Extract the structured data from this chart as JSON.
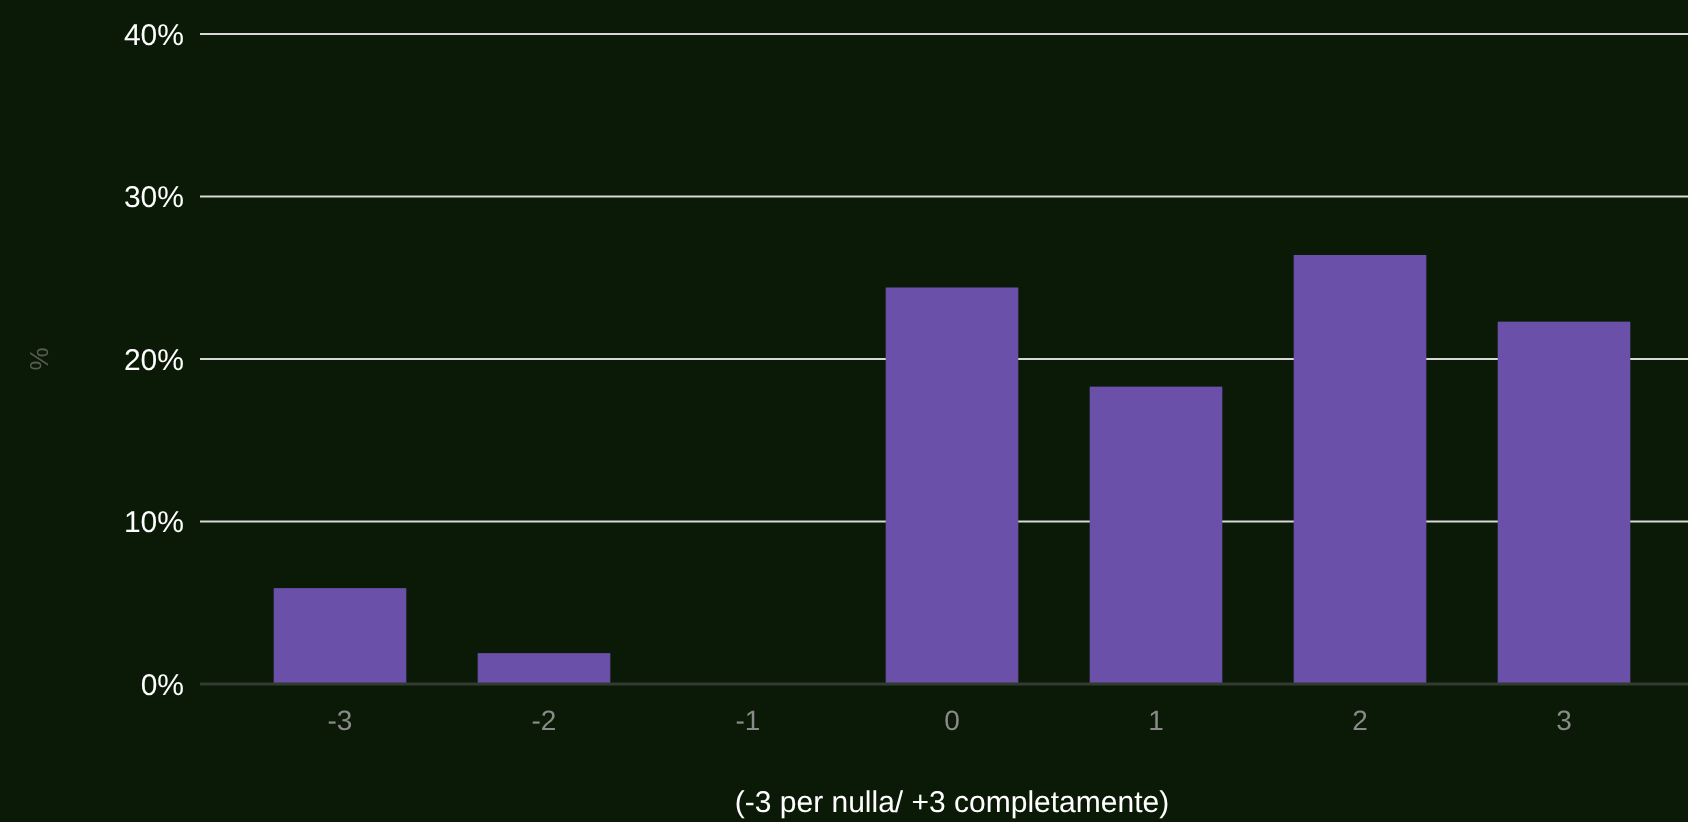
{
  "chart_data": {
    "type": "bar",
    "ylabel": "%",
    "xlabel": "(-3 per nulla/ +3 completamente)",
    "categories": [
      "-3",
      "-2",
      "-1",
      "0",
      "1",
      "2",
      "3"
    ],
    "values": [
      5.9,
      1.9,
      0,
      24.4,
      18.3,
      26.4,
      22.3
    ],
    "color": "#6a50a8",
    "ylim": [
      0,
      40
    ],
    "yticks": [
      {
        "value": 0,
        "label": "0%"
      },
      {
        "value": 10,
        "label": "10%"
      },
      {
        "value": 20,
        "label": "20%"
      },
      {
        "value": 30,
        "label": "30%"
      },
      {
        "value": 40,
        "label": "40%"
      }
    ],
    "grid": "y"
  }
}
